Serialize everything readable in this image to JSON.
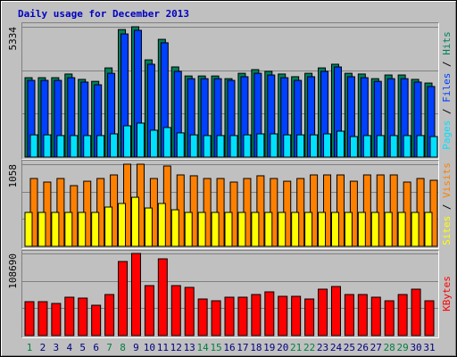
{
  "chart_data": [
    {
      "type": "bar",
      "title": "Daily usage for December 2013",
      "categories": [
        "1",
        "2",
        "3",
        "4",
        "5",
        "6",
        "7",
        "8",
        "9",
        "10",
        "11",
        "12",
        "13",
        "14",
        "15",
        "16",
        "17",
        "18",
        "19",
        "20",
        "21",
        "22",
        "23",
        "24",
        "25",
        "26",
        "27",
        "28",
        "29",
        "30",
        "31"
      ],
      "series": [
        {
          "name": "Hits",
          "color": "#00805c",
          "values": [
            3250,
            3250,
            3250,
            3400,
            3180,
            3100,
            3650,
            5220,
            5334,
            3980,
            4820,
            3690,
            3320,
            3320,
            3320,
            3210,
            3430,
            3580,
            3510,
            3400,
            3290,
            3430,
            3650,
            3800,
            3430,
            3400,
            3210,
            3360,
            3360,
            3180,
            3030
          ]
        },
        {
          "name": "Files",
          "color": "#0040ff",
          "values": [
            3140,
            3140,
            3140,
            3250,
            3070,
            2960,
            3430,
            5040,
            5190,
            3800,
            4680,
            3510,
            3210,
            3210,
            3210,
            3140,
            3290,
            3430,
            3360,
            3250,
            3140,
            3290,
            3510,
            3690,
            3290,
            3250,
            3100,
            3210,
            3210,
            3070,
            2890
          ]
        },
        {
          "name": "Pages",
          "color": "#00e0ff",
          "values": [
            910,
            910,
            880,
            880,
            880,
            880,
            950,
            1280,
            1390,
            1100,
            1210,
            990,
            910,
            880,
            880,
            880,
            910,
            950,
            950,
            910,
            910,
            910,
            950,
            1060,
            840,
            880,
            880,
            880,
            880,
            880,
            840
          ]
        }
      ],
      "legend_separator": " / ",
      "ylim": [
        0,
        5334
      ],
      "yticks": [
        5334
      ],
      "grid_divisions": 3
    },
    {
      "type": "bar",
      "categories": [
        "1",
        "2",
        "3",
        "4",
        "5",
        "6",
        "7",
        "8",
        "9",
        "10",
        "11",
        "12",
        "13",
        "14",
        "15",
        "16",
        "17",
        "18",
        "19",
        "20",
        "21",
        "22",
        "23",
        "24",
        "25",
        "26",
        "27",
        "28",
        "29",
        "30",
        "31"
      ],
      "series": [
        {
          "name": "Visits",
          "color": "#ff8000",
          "values": [
            874,
            828,
            874,
            782,
            839,
            874,
            920,
            1058,
            1058,
            874,
            1035,
            920,
            909,
            874,
            874,
            828,
            874,
            909,
            874,
            839,
            874,
            920,
            920,
            920,
            839,
            920,
            920,
            920,
            828,
            874,
            851
          ]
        },
        {
          "name": "Sites",
          "color": "#ffff00",
          "values": [
            437,
            437,
            437,
            437,
            437,
            437,
            506,
            552,
            632,
            494,
            552,
            471,
            437,
            437,
            437,
            437,
            437,
            437,
            437,
            437,
            437,
            437,
            437,
            437,
            437,
            437,
            437,
            437,
            437,
            437,
            437
          ]
        }
      ],
      "legend_separator": " / ",
      "ylim": [
        0,
        1058
      ],
      "yticks": [
        1058
      ],
      "grid_divisions": 3
    },
    {
      "type": "bar",
      "categories": [
        "1",
        "2",
        "3",
        "4",
        "5",
        "6",
        "7",
        "8",
        "9",
        "10",
        "11",
        "12",
        "13",
        "14",
        "15",
        "16",
        "17",
        "18",
        "19",
        "20",
        "21",
        "22",
        "23",
        "24",
        "25",
        "26",
        "27",
        "28",
        "29",
        "30",
        "31"
      ],
      "category_colors": [
        "#008040",
        "#000080",
        "#000080",
        "#000080",
        "#000080",
        "#000080",
        "#008040",
        "#008040",
        "#000080",
        "#000080",
        "#000080",
        "#000080",
        "#000080",
        "#008040",
        "#008040",
        "#000080",
        "#000080",
        "#000080",
        "#000080",
        "#000080",
        "#008040",
        "#008040",
        "#000080",
        "#000080",
        "#000080",
        "#000080",
        "#000080",
        "#008040",
        "#008040",
        "#000080",
        "#000080"
      ],
      "series": [
        {
          "name": "KBytes",
          "color": "#ff0000",
          "values": [
            44890,
            44890,
            42530,
            50800,
            49620,
            40170,
            54350,
            98060,
            108690,
            66160,
            101600,
            66160,
            63800,
            48440,
            46080,
            50800,
            50800,
            54350,
            57890,
            51980,
            51980,
            48440,
            61430,
            64980,
            54350,
            54350,
            50800,
            46080,
            54350,
            61430,
            46080
          ]
        }
      ],
      "legend_separator": " / ",
      "ylim": [
        0,
        108690
      ],
      "yticks": [
        108690
      ],
      "grid_divisions": 3
    }
  ]
}
